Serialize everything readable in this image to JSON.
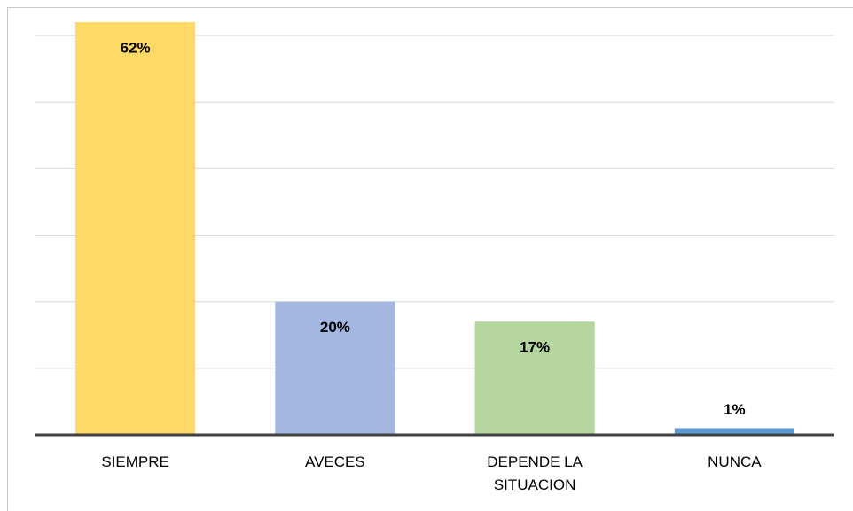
{
  "chart_data": {
    "type": "bar",
    "categories": [
      "SIEMPRE",
      "AVECES",
      "DEPENDE LA SITUACION",
      "NUNCA"
    ],
    "values": [
      62,
      20,
      17,
      1
    ],
    "value_labels": [
      "62%",
      "20%",
      "17%",
      "1%"
    ],
    "colors": [
      "#ffd966",
      "#a3b7e0",
      "#b5d69f",
      "#5b9bd5"
    ],
    "ylim": [
      0,
      64
    ],
    "yticks": [
      0,
      10,
      20,
      30,
      40,
      50,
      60
    ],
    "grid": true
  }
}
